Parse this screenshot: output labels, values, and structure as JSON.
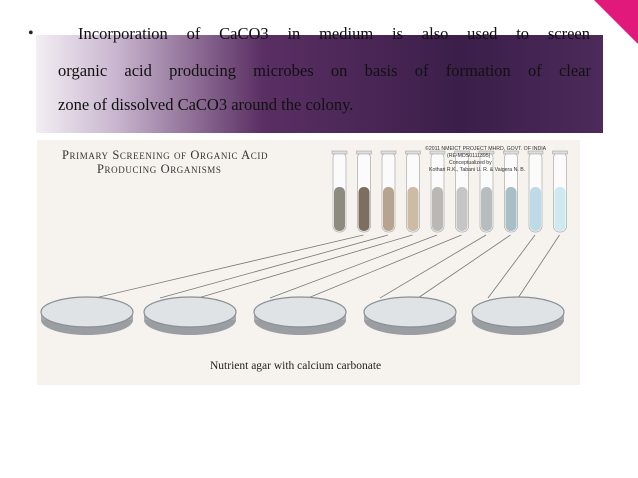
{
  "bullet": {
    "marker": "•",
    "lines": [
      "Incorporation of CaCO3 in medium is also used to screen",
      "organic acid producing microbes on basis of formation of clear",
      "zone of dissolved CaCO3 around the colony."
    ]
  },
  "figure": {
    "title_lines": [
      "Primary Screening of Organic Acid",
      "Producing Organisms"
    ],
    "credits": [
      "©2011 NMEICT PROJECT MHRD, GOVT. OF INDIA",
      "(RE-MDS0111395)",
      "Conceptualized by",
      "Kothari R.K., Tabani U. R. & Vaigera N. B."
    ],
    "caption": "Nutrient agar with calcium carbonate"
  }
}
